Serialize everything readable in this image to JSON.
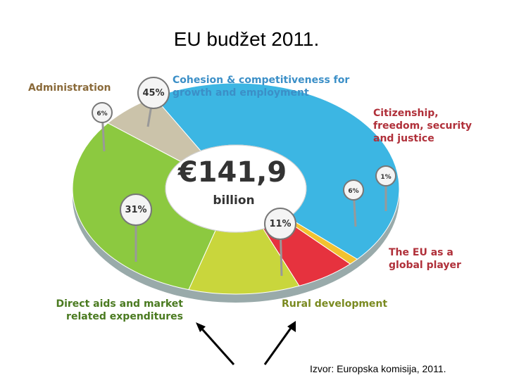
{
  "chart_data": {
    "type": "donut",
    "title": "EU budžet 2011.",
    "center_value": "€141,9",
    "center_unit": "billion",
    "categories": [
      "Cohesion & competitiveness for growth and employment",
      "Citizenship, freedom, security and justice",
      "The EU as a global player",
      "Rural development",
      "Direct aids and market related expenditures",
      "Administration"
    ],
    "values": [
      45,
      1,
      6,
      11,
      31,
      6
    ],
    "value_labels": [
      "45%",
      "1%",
      "6%",
      "11%",
      "31%",
      "6%"
    ],
    "colors": [
      "#3cb6e3",
      "#f2c230",
      "#e6323e",
      "#c9d63c",
      "#8cc940",
      "#cbc3aa"
    ]
  },
  "source": "Izvor:  Europska komisija, 2011."
}
